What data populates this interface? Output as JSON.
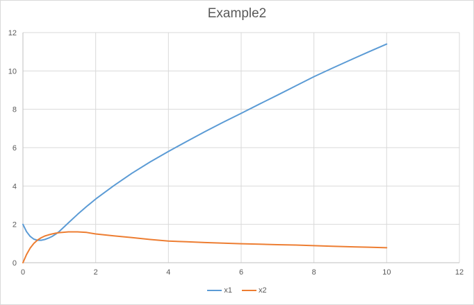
{
  "chart_data": {
    "type": "line",
    "title": "Example2",
    "x": [
      0,
      0.1,
      0.2,
      0.3,
      0.4,
      0.5,
      0.6,
      0.7,
      0.8,
      0.9,
      1.0,
      1.25,
      1.5,
      1.75,
      2,
      2.5,
      3,
      3.5,
      4,
      4.5,
      5,
      5.5,
      6,
      6.5,
      7,
      7.5,
      8,
      8.5,
      9,
      9.5,
      10
    ],
    "series": [
      {
        "name": "x1",
        "color": "#5B9BD5",
        "values": [
          2.0,
          1.62,
          1.37,
          1.23,
          1.17,
          1.17,
          1.21,
          1.28,
          1.37,
          1.49,
          1.63,
          2.08,
          2.52,
          2.93,
          3.32,
          4.02,
          4.67,
          5.26,
          5.8,
          6.32,
          6.83,
          7.32,
          7.79,
          8.27,
          8.74,
          9.22,
          9.7,
          10.14,
          10.57,
          10.99,
          11.4
        ]
      },
      {
        "name": "x2",
        "color": "#ED7D31",
        "values": [
          0.0,
          0.43,
          0.77,
          1.01,
          1.18,
          1.3,
          1.39,
          1.45,
          1.5,
          1.54,
          1.57,
          1.61,
          1.61,
          1.58,
          1.5,
          1.4,
          1.31,
          1.21,
          1.13,
          1.09,
          1.05,
          1.02,
          0.99,
          0.97,
          0.94,
          0.92,
          0.89,
          0.86,
          0.83,
          0.81,
          0.78
        ]
      }
    ],
    "xlabel": "",
    "ylabel": "",
    "xlim": [
      0,
      12
    ],
    "ylim": [
      0,
      12
    ],
    "xticks": [
      0,
      2,
      4,
      6,
      8,
      10,
      12
    ],
    "yticks": [
      0,
      2,
      4,
      6,
      8,
      10,
      12
    ],
    "grid": true,
    "legend_position": "bottom",
    "style": {
      "text_color": "#595959",
      "gridline_color": "#D9D9D9",
      "axis_color": "#BFBFBF",
      "line_width": 2,
      "tick_font_size": 11
    }
  }
}
